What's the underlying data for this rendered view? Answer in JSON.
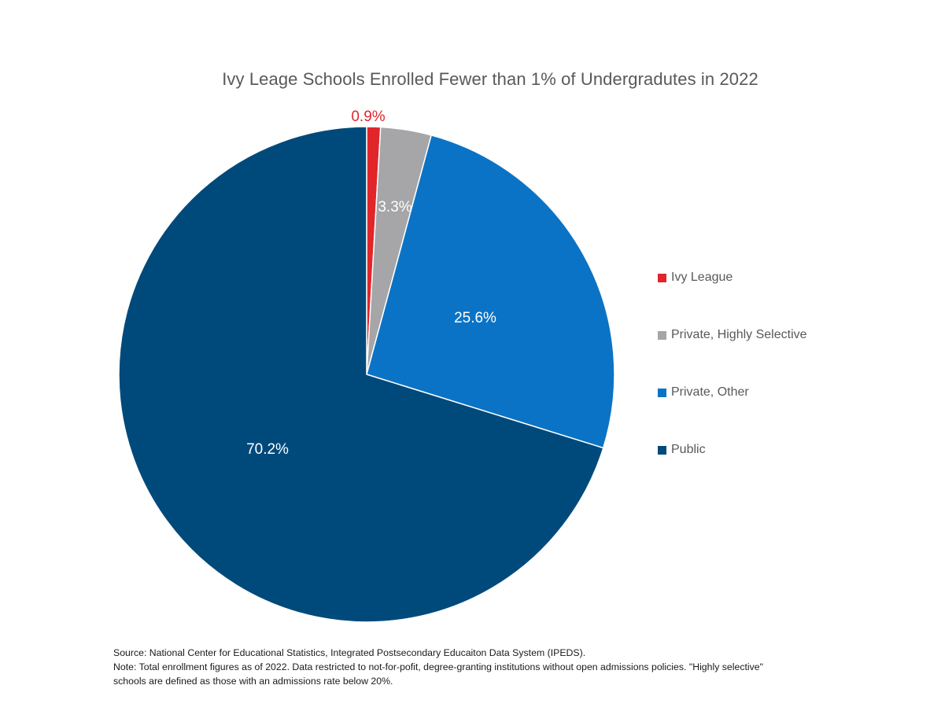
{
  "chart_data": {
    "type": "pie",
    "title": "Ivy Leage Schools Enrolled Fewer than 1% of Undergradutes in 2022",
    "slices": [
      {
        "label": "Ivy League",
        "value": 0.9,
        "data_label": "0.9%",
        "color": "#e0262b",
        "label_color": "#e0262b"
      },
      {
        "label": "Private, Highly Selective",
        "value": 3.3,
        "data_label": "3.3%",
        "color": "#a6a6a8",
        "label_color": "#ffffff"
      },
      {
        "label": "Private, Other",
        "value": 25.6,
        "data_label": "25.6%",
        "color": "#0b73c5",
        "label_color": "#ffffff"
      },
      {
        "label": "Public",
        "value": 70.2,
        "data_label": "70.2%",
        "color": "#004a7b",
        "label_color": "#ffffff"
      }
    ],
    "legend_position": "right",
    "start_angle": "12 o'clock, clockwise"
  },
  "footnotes": {
    "source": "Source: National Center for Educational Statistics, Integrated Postsecondary Educaiton Data System (IPEDS).",
    "note_line1": "Note: Total enrollment figures as of 2022. Data restricted to not-for-pofit, degree-granting institutions without open admissions policies. \"Highly selective\"",
    "note_line2": "schools are defined as those with an admissions rate below 20%."
  }
}
